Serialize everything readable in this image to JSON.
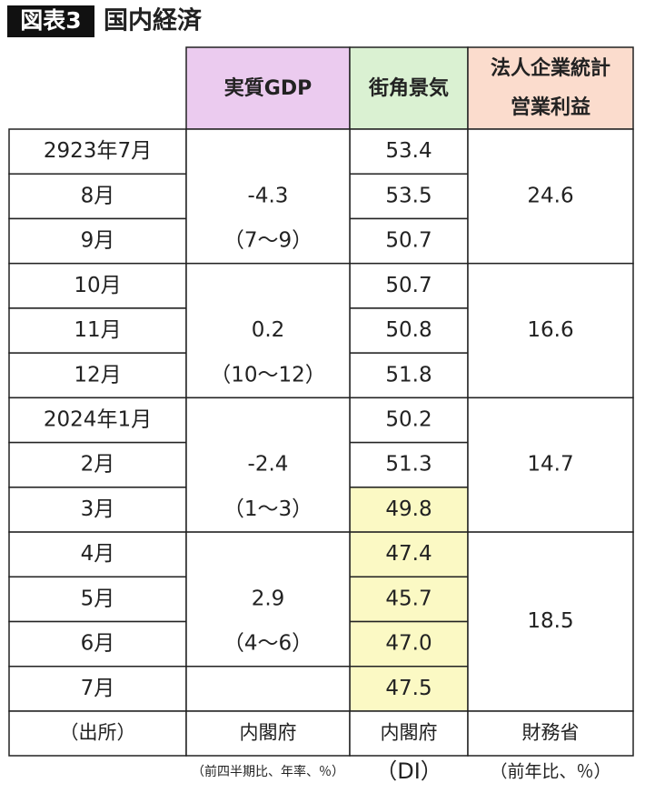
{
  "title": {
    "label": "図表3",
    "text": "国内経済"
  },
  "header": {
    "gdp": "実質GDP",
    "machikado": "街角景気",
    "profit": [
      "法人企業統計",
      "営業利益"
    ]
  },
  "table": {
    "rows": [
      {
        "month": "2923年7月",
        "di": "53.4"
      },
      {
        "month": "8月",
        "di": "53.5"
      },
      {
        "month": "9月",
        "di": "50.7"
      },
      {
        "month": "10月",
        "di": "50.7"
      },
      {
        "month": "11月",
        "di": "50.8"
      },
      {
        "month": "12月",
        "di": "51.8"
      },
      {
        "month": "2024年1月",
        "di": "50.2"
      },
      {
        "month": "2月",
        "di": "51.3"
      },
      {
        "month": "3月",
        "di": "49.8",
        "highlight": true
      },
      {
        "month": "4月",
        "di": "47.4",
        "highlight": true
      },
      {
        "month": "5月",
        "di": "45.7",
        "highlight": true
      },
      {
        "month": "6月",
        "di": "47.0",
        "highlight": true
      },
      {
        "month": "7月",
        "di": "47.5",
        "highlight": true
      }
    ],
    "gdp_groups": [
      {
        "value": "-4.3",
        "period": "（7～9）",
        "span": 3
      },
      {
        "value": "0.2",
        "period": "（10～12）",
        "span": 3
      },
      {
        "value": "-2.4",
        "period": "（1～3）",
        "span": 3
      },
      {
        "value": "2.9",
        "period": "（4～6）",
        "span": 3
      },
      {
        "span": 1
      }
    ],
    "profit_groups": [
      {
        "value": "24.6",
        "span": 3
      },
      {
        "value": "16.6",
        "span": 3
      },
      {
        "value": "14.7",
        "span": 3
      },
      {
        "value": "18.5",
        "span": 4
      }
    ],
    "source": [
      "（出所）",
      "内閣府",
      "内閣府",
      "財務省"
    ],
    "notes": [
      "（前四半期比、年率、％）",
      "（DI）",
      "（前年比、％）"
    ]
  },
  "colors": {
    "gdp": "#ebcbef",
    "machikado": "#daf1d2",
    "profit": "#fbdccd",
    "highlight": "#fbf9c4"
  }
}
